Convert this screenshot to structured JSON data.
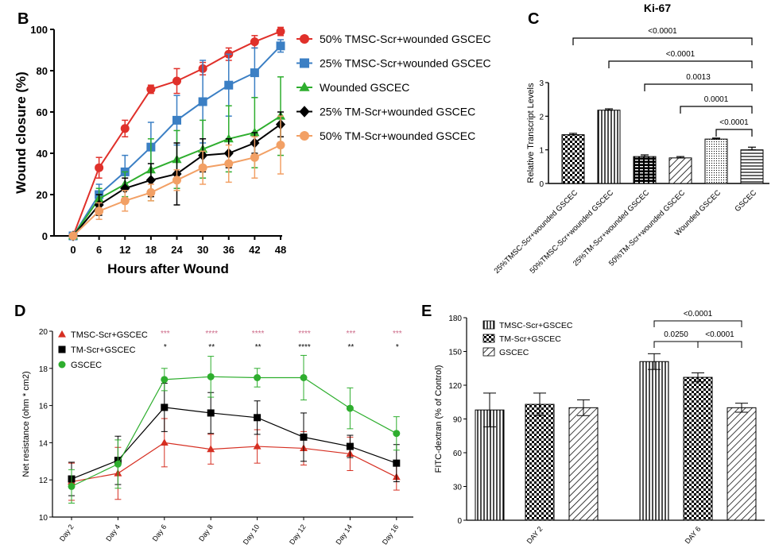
{
  "chart_data": [
    {
      "panel": "B",
      "type": "line",
      "title": "",
      "xlabel": "Hours after Wound",
      "ylabel": "Wound closure (%)",
      "x": [
        0,
        6,
        12,
        18,
        24,
        30,
        36,
        42,
        48
      ],
      "xticks": [
        "0",
        "6",
        "12",
        "18",
        "24",
        "30",
        "36",
        "42",
        "48"
      ],
      "ylim": [
        0,
        100
      ],
      "yticks": [
        0,
        20,
        40,
        60,
        80,
        100
      ],
      "legend_position": "right",
      "series": [
        {
          "name": "50% TMSC-Scr+wounded GSCEC",
          "color": "#e0302a",
          "marker": "circle",
          "values": [
            0,
            33,
            52,
            71,
            75,
            81,
            88,
            94,
            99
          ],
          "errors": [
            0,
            5,
            4,
            2,
            6,
            3,
            3,
            3,
            2
          ]
        },
        {
          "name": "25% TMSC-Scr+wounded GSCEC",
          "color": "#3b7fc4",
          "marker": "square",
          "values": [
            0,
            20,
            31,
            43,
            56,
            65,
            73,
            79,
            92
          ],
          "errors": [
            0,
            5,
            8,
            12,
            12,
            20,
            15,
            12,
            3
          ]
        },
        {
          "name": "Wounded GSCEC",
          "color": "#2eae2e",
          "marker": "triangle",
          "values": [
            0,
            18,
            25,
            32,
            37,
            42,
            47,
            50,
            58
          ],
          "errors": [
            0,
            5,
            6,
            15,
            14,
            14,
            16,
            17,
            19
          ]
        },
        {
          "name": "25% TM-Scr+wounded GSCEC",
          "color": "#000000",
          "marker": "diamond",
          "values": [
            0,
            15,
            23,
            27,
            30,
            39,
            40,
            45,
            54
          ],
          "errors": [
            0,
            5,
            5,
            8,
            15,
            8,
            7,
            5,
            6
          ]
        },
        {
          "name": "50% TM-Scr+wounded GSCEC",
          "color": "#f2a065",
          "marker": "circle",
          "values": [
            0,
            12,
            17,
            21,
            27,
            33,
            35,
            38,
            44
          ],
          "errors": [
            0,
            4,
            5,
            4,
            5,
            8,
            9,
            10,
            14
          ]
        }
      ]
    },
    {
      "panel": "C",
      "type": "bar",
      "title": "Ki-67",
      "xlabel": "",
      "ylabel": "Relative Transcript Levels",
      "categories": [
        "25%TMSC-Scr+wounded GSCEC",
        "50%TMSC-Scr+wounded GSCEC",
        "25%TM-Scr+wounded GSCEC",
        "50%TM-Scr+wounded GSCEC",
        "Wounded GSCEC",
        "GSCEC"
      ],
      "values": [
        1.45,
        2.18,
        0.8,
        0.76,
        1.32,
        1.0
      ],
      "errors": [
        0.04,
        0.04,
        0.05,
        0.04,
        0.03,
        0.08
      ],
      "patterns": [
        "checker",
        "vertical",
        "brick",
        "diagonal",
        "dots",
        "horizontal"
      ],
      "ylim": [
        0,
        3
      ],
      "yticks": [
        0,
        1,
        2,
        3
      ],
      "brackets": [
        {
          "from": 0,
          "to": 5,
          "label": "<0.0001"
        },
        {
          "from": 1,
          "to": 5,
          "label": "<0.0001"
        },
        {
          "from": 2,
          "to": 5,
          "label": "0.0013"
        },
        {
          "from": 3,
          "to": 5,
          "label": "0.0001"
        },
        {
          "from": 4,
          "to": 5,
          "label": "<0.0001"
        }
      ]
    },
    {
      "panel": "D",
      "type": "line",
      "title": "",
      "xlabel": "",
      "ylabel": "Net resistance (ohm * cm2)",
      "categories": [
        "Day 2",
        "Day 4",
        "Day 6",
        "Day 8",
        "Day 10",
        "Day 12",
        "Day 14",
        "Day 16"
      ],
      "ylim": [
        10,
        20
      ],
      "yticks": [
        10,
        12,
        14,
        16,
        18,
        20
      ],
      "legend_position": "top-left",
      "series": [
        {
          "name": "TMSC-Scr+GSCEC",
          "color": "#d62f22",
          "marker": "triangle",
          "values": [
            11.9,
            12.35,
            14.0,
            13.65,
            13.8,
            13.7,
            13.4,
            12.15
          ],
          "errors": [
            1.0,
            1.4,
            1.3,
            0.8,
            0.9,
            0.9,
            0.9,
            0.7
          ]
        },
        {
          "name": "TM-Scr+GSCEC",
          "color": "#000000",
          "marker": "square",
          "values": [
            12.05,
            13.05,
            15.9,
            15.6,
            15.35,
            14.3,
            13.8,
            12.9
          ],
          "errors": [
            0.9,
            1.3,
            1.3,
            1.1,
            0.9,
            1.3,
            0.6,
            1.0
          ]
        },
        {
          "name": "GSCEC",
          "color": "#2eae2e",
          "marker": "circle",
          "values": [
            11.65,
            12.85,
            17.4,
            17.55,
            17.5,
            17.5,
            15.85,
            14.5
          ],
          "errors": [
            0.9,
            1.3,
            0.6,
            1.1,
            0.5,
            1.2,
            1.1,
            0.9
          ]
        }
      ],
      "significance_pink": [
        "",
        "",
        "***",
        "****",
        "****",
        "****",
        "***",
        "***"
      ],
      "significance_black": [
        "",
        "",
        "*",
        "**",
        "**",
        "****",
        "**",
        "*"
      ]
    },
    {
      "panel": "E",
      "type": "bar",
      "title": "",
      "xlabel": "",
      "ylabel": "FITC-dextran (% of Control)",
      "categories": [
        "DAY 2",
        "DAY 6"
      ],
      "ylim": [
        0,
        180
      ],
      "yticks": [
        0,
        30,
        60,
        90,
        120,
        150,
        180
      ],
      "legend_position": "top-left",
      "series": [
        {
          "name": "TMSC-Scr+GSCEC",
          "pattern": "vertical",
          "values": [
            98,
            141
          ],
          "errors": [
            15,
            7
          ]
        },
        {
          "name": "TM-Scr+GSCEC",
          "pattern": "checker",
          "values": [
            103,
            127
          ],
          "errors": [
            10,
            4
          ]
        },
        {
          "name": "GSCEC",
          "pattern": "diagonal",
          "values": [
            100,
            100
          ],
          "errors": [
            7,
            4
          ]
        }
      ],
      "brackets": [
        {
          "group": 1,
          "from": 0,
          "to": 2,
          "label": "<0.0001"
        },
        {
          "group": 1,
          "from": 0,
          "to": 1,
          "label": "0.0250"
        },
        {
          "group": 1,
          "from": 1,
          "to": 2,
          "label": "<0.0001"
        }
      ]
    }
  ],
  "panel_labels": {
    "b": "B",
    "c": "C",
    "d": "D",
    "e": "E"
  }
}
